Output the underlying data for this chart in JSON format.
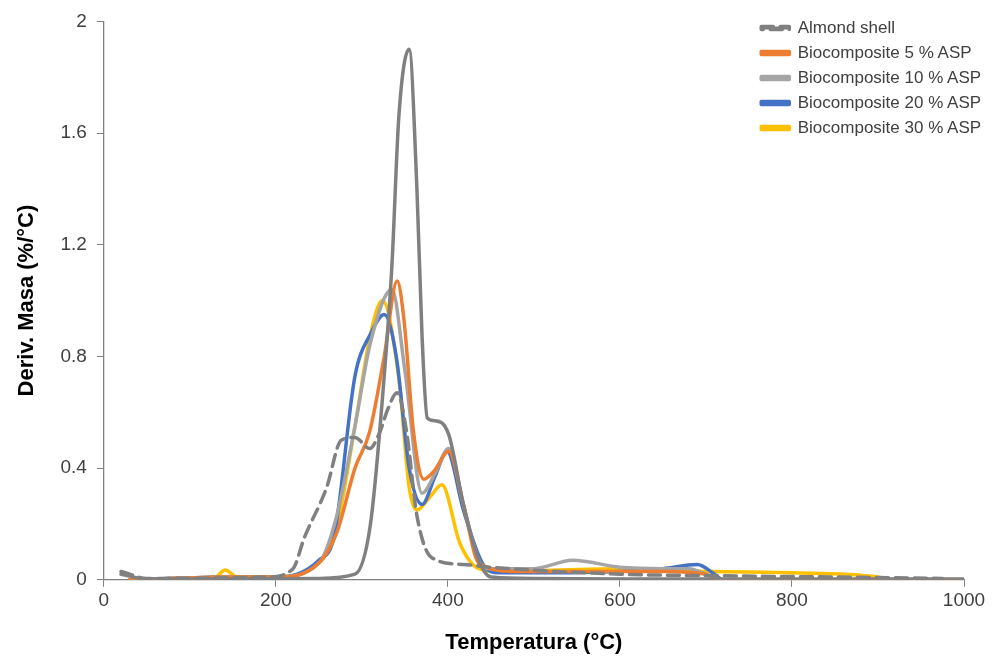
{
  "chart_data": {
    "type": "line",
    "xlabel": "Temperatura (°C)",
    "ylabel": "Deriv. Masa (%/°C)",
    "xlim": [
      0,
      1000
    ],
    "xticks": [
      0,
      200,
      400,
      600,
      800,
      1000
    ],
    "ylim": [
      0,
      2
    ],
    "yticks": [
      0,
      0.4,
      0.8,
      1.2,
      1.6,
      2
    ],
    "grid": false,
    "legend": "top right",
    "marker": "none",
    "series": [
      {
        "color": "#808080",
        "line_style": "solid",
        "x": [
          20,
          50,
          150,
          250,
          292,
          310,
          326,
          335,
          343,
          355,
          364,
          370,
          376,
          384,
          401,
          418,
          436,
          450,
          500,
          600,
          800,
          1000
        ],
        "values": [
          0.02,
          0.003,
          0.003,
          0.005,
          0.02,
          0.2,
          0.73,
          1.13,
          1.66,
          1.9,
          1.4,
          0.87,
          0.58,
          0.57,
          0.52,
          0.27,
          0.07,
          0.01,
          0.005,
          0.003,
          0.003,
          0.003
        ]
      },
      {
        "name": "Almond shell",
        "color": "#808080",
        "line_style": "dashed",
        "x": [
          20,
          50,
          190,
          220,
          233,
          259,
          276,
          292,
          309,
          321,
          330,
          341,
          352,
          364,
          381,
          418,
          450,
          600,
          700,
          850,
          975
        ],
        "values": [
          0.03,
          0.005,
          0.01,
          0.04,
          0.15,
          0.33,
          0.5,
          0.51,
          0.47,
          0.53,
          0.61,
          0.67,
          0.53,
          0.23,
          0.08,
          0.055,
          0.045,
          0.02,
          0.015,
          0.01,
          0.005
        ]
      },
      {
        "name": "Biocomposite 5 % ASP",
        "color": "#ed7d31",
        "line_style": "solid",
        "x": [
          30,
          150,
          200,
          250,
          271,
          292,
          309,
          326,
          341,
          349,
          360,
          372,
          384,
          401,
          418,
          436,
          480,
          550,
          650,
          700,
          712,
          1000
        ],
        "values": [
          0.0,
          0.01,
          0.01,
          0.06,
          0.17,
          0.4,
          0.53,
          0.8,
          1.07,
          0.93,
          0.53,
          0.36,
          0.39,
          0.46,
          0.27,
          0.06,
          0.03,
          0.03,
          0.03,
          0.02,
          0.0,
          0.0
        ]
      },
      {
        "name": "Biocomposite 10 % ASP",
        "color": "#a5a5a5",
        "line_style": "solid",
        "x": [
          30,
          150,
          200,
          250,
          270,
          292,
          310,
          335,
          350,
          370,
          385,
          401,
          418,
          436,
          450,
          500,
          545,
          600,
          650,
          680,
          700,
          720,
          1000
        ],
        "values": [
          0.0,
          0.01,
          0.01,
          0.06,
          0.22,
          0.55,
          0.85,
          1.04,
          0.75,
          0.31,
          0.38,
          0.47,
          0.27,
          0.07,
          0.04,
          0.04,
          0.07,
          0.045,
          0.04,
          0.04,
          0.02,
          0.0,
          0.0
        ]
      },
      {
        "name": "Biocomposite 20 % ASP",
        "color": "#4472c4",
        "line_style": "solid",
        "x": [
          30,
          150,
          200,
          250,
          268,
          292,
          310,
          326,
          340,
          355,
          370,
          385,
          399,
          418,
          440,
          460,
          500,
          600,
          650,
          690,
          710,
          720,
          1000
        ],
        "values": [
          0.0,
          0.01,
          0.01,
          0.07,
          0.16,
          0.73,
          0.88,
          0.95,
          0.8,
          0.4,
          0.27,
          0.37,
          0.46,
          0.25,
          0.06,
          0.025,
          0.025,
          0.03,
          0.04,
          0.055,
          0.02,
          0.0,
          0.0
        ]
      },
      {
        "name": "Biocomposite 30 % ASP",
        "color": "#ffc000",
        "line_style": "solid",
        "x": [
          30,
          130,
          141,
          155,
          200,
          250,
          270,
          292,
          310,
          324,
          343,
          355,
          364,
          380,
          393,
          414,
          436,
          460,
          600,
          700,
          800,
          900,
          910
        ],
        "values": [
          0.0,
          0.01,
          0.035,
          0.01,
          0.01,
          0.06,
          0.18,
          0.55,
          0.88,
          1.0,
          0.72,
          0.33,
          0.25,
          0.3,
          0.34,
          0.13,
          0.04,
          0.03,
          0.04,
          0.03,
          0.025,
          0.01,
          0.0
        ]
      }
    ]
  }
}
